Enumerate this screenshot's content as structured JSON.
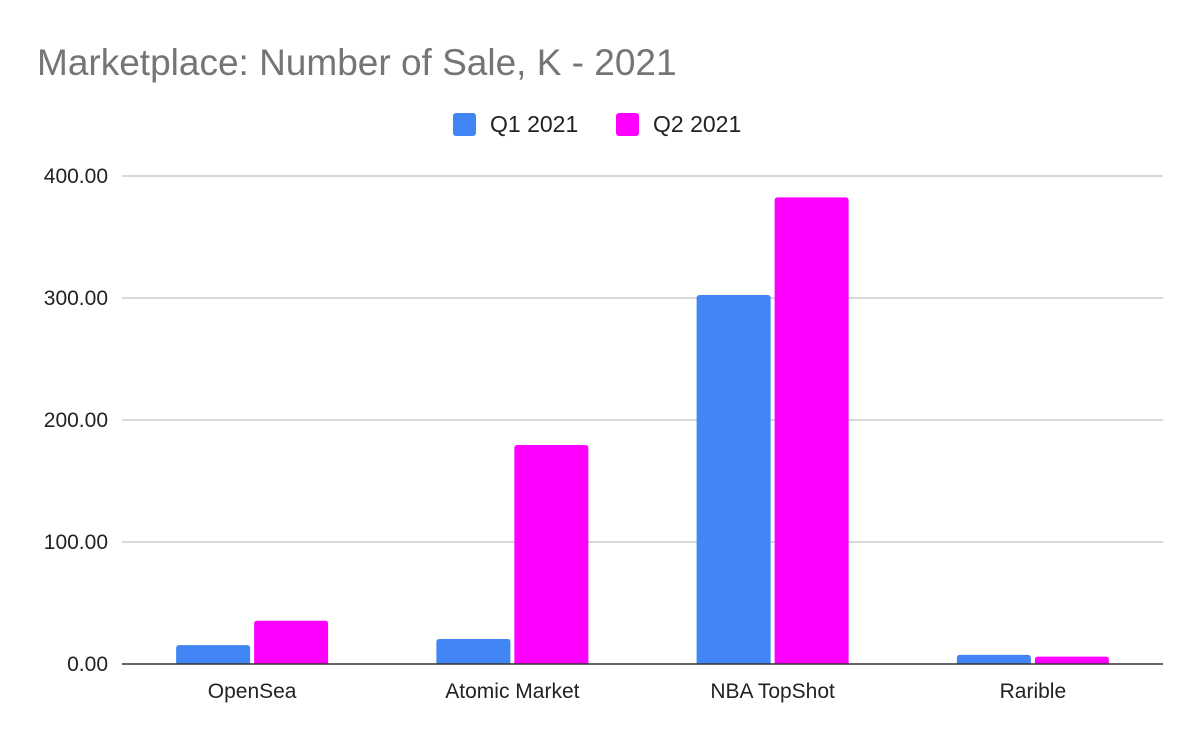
{
  "chart_data": {
    "type": "bar",
    "title": "Marketplace: Number of Sale, K - 2021",
    "xlabel": "",
    "ylabel": "",
    "categories": [
      "OpenSea",
      "Atomic Market",
      "NBA TopShot",
      "Rarible"
    ],
    "series": [
      {
        "name": "Q1 2021",
        "color": "#4285f4",
        "values": [
          15.5,
          20.5,
          302.5,
          7.5
        ]
      },
      {
        "name": "Q2 2021",
        "color": "#ff00ff",
        "values": [
          35.5,
          179.5,
          382.5,
          6.0
        ]
      }
    ],
    "ylim": [
      0,
      400
    ],
    "yticks": [
      0,
      100,
      200,
      300,
      400
    ],
    "ytick_labels": [
      "0.00",
      "100.00",
      "200.00",
      "300.00",
      "400.00"
    ],
    "grid": true,
    "legend": "top-center"
  }
}
